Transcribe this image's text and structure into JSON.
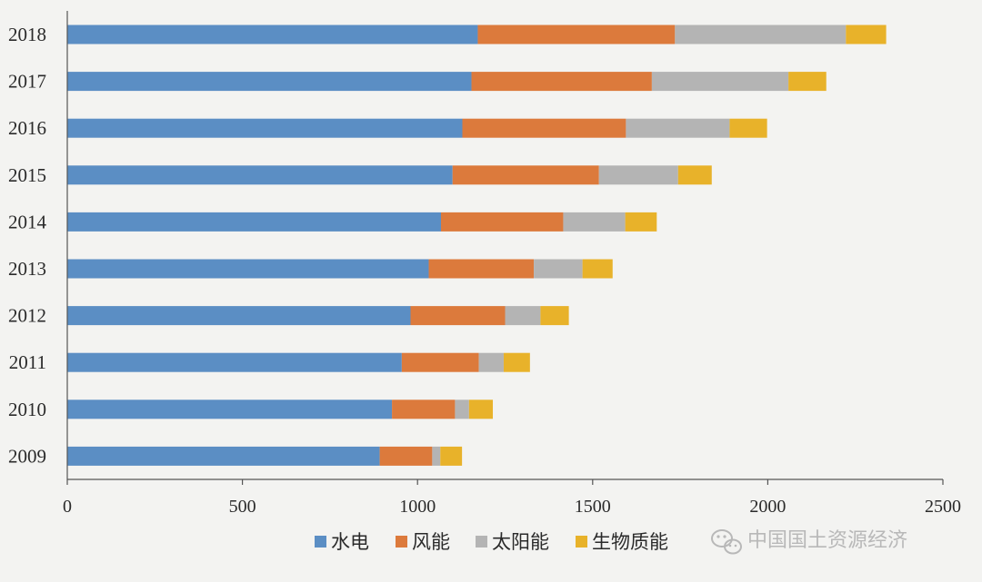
{
  "chart_data": {
    "type": "bar",
    "orientation": "horizontal",
    "stacked": true,
    "title": "",
    "xlabel": "",
    "ylabel": "",
    "xlim": [
      0,
      2500
    ],
    "xticks": [
      0,
      500,
      1000,
      1500,
      2000,
      2500
    ],
    "grid": false,
    "legend_position": "bottom",
    "categories": [
      "2018",
      "2017",
      "2016",
      "2015",
      "2014",
      "2013",
      "2012",
      "2011",
      "2010",
      "2009"
    ],
    "series": [
      {
        "name": "水电",
        "color": "#5b8ec4",
        "values": [
          1172,
          1154,
          1128,
          1100,
          1067,
          1032,
          980,
          955,
          927,
          892
        ]
      },
      {
        "name": "风能",
        "color": "#dc7a3c",
        "values": [
          563,
          515,
          467,
          418,
          349,
          300,
          270,
          220,
          180,
          150
        ]
      },
      {
        "name": "太阳能",
        "color": "#b4b4b4",
        "values": [
          488,
          390,
          296,
          226,
          177,
          139,
          101,
          71,
          40,
          23
        ]
      },
      {
        "name": "生物质能",
        "color": "#e8b22a",
        "values": [
          115,
          108,
          107,
          96,
          90,
          86,
          81,
          75,
          68,
          62
        ]
      }
    ]
  },
  "watermark": {
    "text": "中国国土资源经济",
    "icon": "wechat-icon"
  }
}
